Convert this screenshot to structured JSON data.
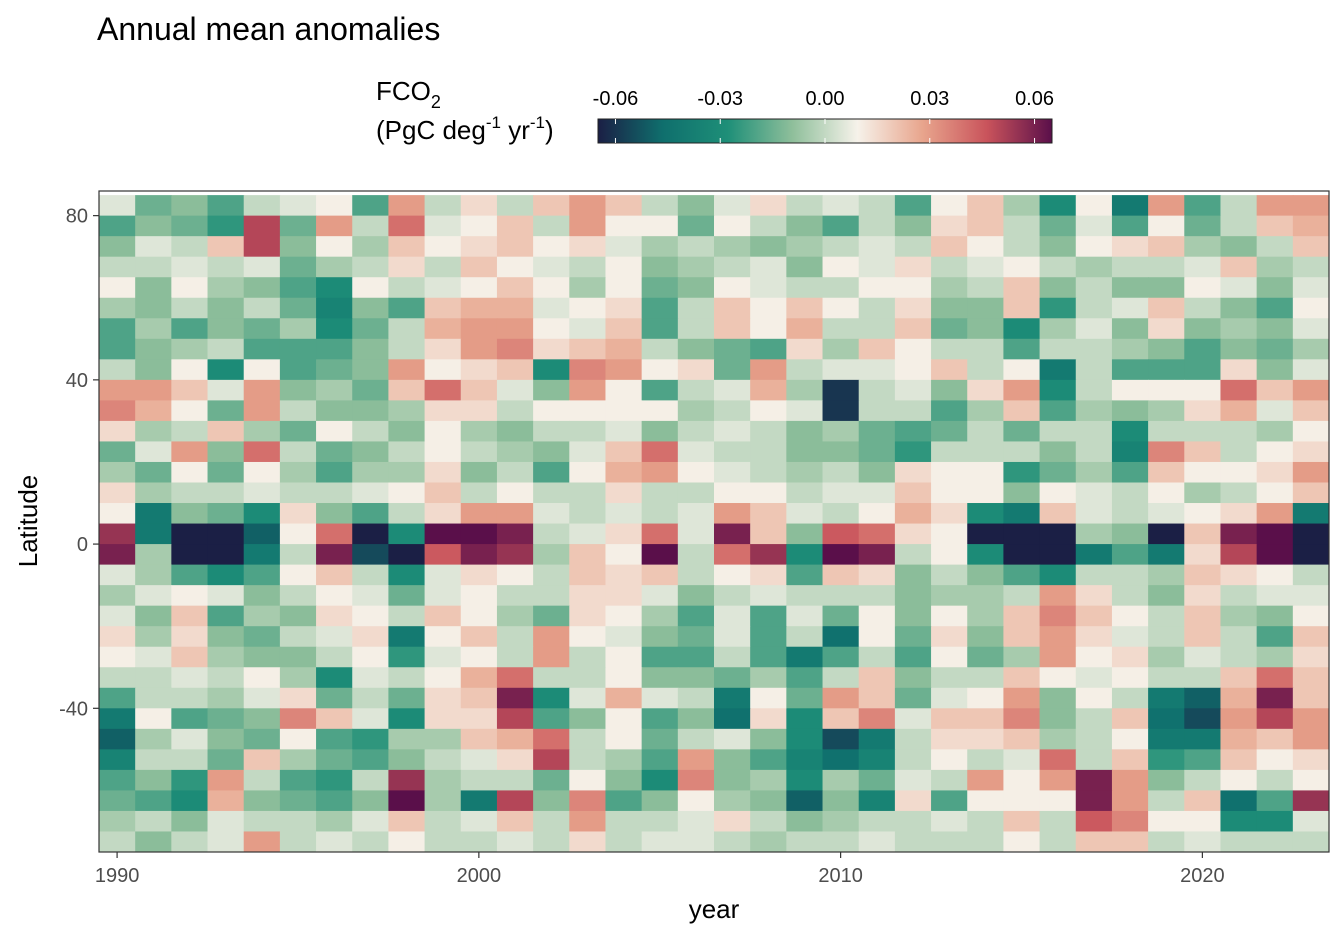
{
  "chart_data": {
    "type": "heatmap",
    "title": "Annual mean anomalies",
    "xlabel": "year",
    "ylabel": "Latitude",
    "x_tick_labels": [
      "1990",
      "2000",
      "2010",
      "2020"
    ],
    "x_ticks": [
      1990,
      2000,
      2010,
      2020
    ],
    "y_tick_labels": [
      "80",
      "40",
      "0",
      "-40"
    ],
    "y_ticks": [
      80,
      40,
      0,
      -40
    ],
    "xlim": [
      1989.5,
      2023.5
    ],
    "ylim": [
      -75,
      86
    ],
    "legend": {
      "title_main": "FCO",
      "title_sub": "2",
      "unit_open": "(PgC deg",
      "unit_exp1": "-1",
      "unit_mid": " yr",
      "unit_exp2": "-1",
      "unit_close": ")",
      "tick_labels": [
        "-0.06",
        "-0.03",
        "0.00",
        "0.03",
        "0.06"
      ],
      "ticks": [
        -0.06,
        -0.03,
        0.0,
        0.03,
        0.06
      ],
      "range": [
        -0.065,
        0.065
      ],
      "position": "top"
    },
    "color_stops": [
      "#1b1f45",
      "#0f6f6d",
      "#1e8f78",
      "#8fbf9b",
      "#f6f2ea",
      "#e8a58d",
      "#c9535b",
      "#5a0f4a"
    ],
    "years": [
      1990,
      1991,
      1992,
      1993,
      1994,
      1995,
      1996,
      1997,
      1998,
      1999,
      2000,
      2001,
      2002,
      2003,
      2004,
      2005,
      2006,
      2007,
      2008,
      2009,
      2010,
      2011,
      2012,
      2013,
      2014,
      2015,
      2016,
      2017,
      2018,
      2019,
      2020,
      2021,
      2022,
      2023
    ],
    "latitudes": [
      82.5,
      77.5,
      72.5,
      67.5,
      62.5,
      57.5,
      52.5,
      47.5,
      42.5,
      37.5,
      32.5,
      27.5,
      22.5,
      17.5,
      12.5,
      7.5,
      2.5,
      -2.5,
      -7.5,
      -12.5,
      -17.5,
      -22.5,
      -27.5,
      -32.5,
      -37.5,
      -42.5,
      -47.5,
      -52.5,
      -57.5,
      -62.5,
      -67.5,
      -72.5
    ],
    "values": [
      [
        0.005,
        -0.015,
        -0.01,
        -0.02,
        0.0,
        0.005,
        0.01,
        -0.02,
        0.03,
        0.0,
        0.015,
        0.0,
        0.02,
        0.03,
        0.02,
        0.0,
        -0.01,
        0.005,
        0.015,
        0.0,
        0.005,
        0.0,
        -0.02,
        0.01,
        0.02,
        -0.005,
        -0.03,
        0.01,
        -0.04,
        0.03,
        -0.02,
        0.0,
        0.03,
        0.03
      ],
      [
        -0.02,
        -0.01,
        -0.015,
        -0.025,
        0.05,
        -0.015,
        0.03,
        0.0,
        0.04,
        0.005,
        0.01,
        0.02,
        0.0,
        0.03,
        0.01,
        0.01,
        -0.015,
        0.01,
        0.0,
        -0.01,
        -0.02,
        0.0,
        -0.01,
        0.015,
        0.02,
        0.0,
        -0.015,
        0.005,
        -0.02,
        0.01,
        -0.015,
        0.0,
        0.02,
        0.025
      ],
      [
        -0.01,
        0.005,
        0.0,
        0.02,
        0.05,
        -0.01,
        0.01,
        -0.005,
        0.02,
        0.01,
        0.015,
        0.02,
        0.01,
        0.015,
        0.005,
        -0.005,
        0.0,
        -0.005,
        -0.01,
        -0.005,
        0.0,
        0.005,
        0.0,
        0.02,
        0.01,
        0.0,
        -0.01,
        0.01,
        0.015,
        0.02,
        -0.005,
        -0.01,
        0.0,
        0.02
      ],
      [
        0.0,
        0.0,
        0.005,
        0.0,
        0.005,
        -0.015,
        -0.005,
        0.0,
        0.015,
        0.0,
        0.02,
        0.01,
        0.005,
        0.0,
        0.01,
        -0.01,
        -0.005,
        0.0,
        0.005,
        -0.01,
        0.01,
        0.005,
        0.015,
        0.0,
        0.005,
        0.01,
        0.0,
        -0.005,
        0.0,
        0.0,
        0.005,
        0.02,
        -0.005,
        0.0
      ],
      [
        0.01,
        -0.01,
        0.01,
        -0.005,
        -0.01,
        -0.02,
        -0.03,
        0.01,
        0.0,
        0.005,
        0.01,
        0.02,
        0.01,
        -0.005,
        0.01,
        -0.015,
        -0.01,
        0.01,
        0.005,
        0.0,
        0.0,
        0.01,
        0.01,
        -0.005,
        0.0,
        0.02,
        -0.01,
        0.0,
        -0.01,
        -0.01,
        0.01,
        0.005,
        -0.01,
        0.005
      ],
      [
        -0.005,
        -0.01,
        0.0,
        -0.01,
        0.0,
        -0.015,
        -0.035,
        -0.01,
        -0.02,
        0.02,
        0.025,
        0.025,
        0.005,
        0.01,
        0.015,
        -0.02,
        0.0,
        0.02,
        0.01,
        0.02,
        0.01,
        0.0,
        0.015,
        -0.01,
        -0.01,
        0.02,
        -0.025,
        0.0,
        0.005,
        0.02,
        0.0,
        -0.01,
        -0.02,
        0.01
      ],
      [
        -0.02,
        -0.005,
        -0.02,
        -0.01,
        -0.015,
        -0.005,
        -0.03,
        -0.015,
        0.0,
        0.025,
        0.03,
        0.03,
        0.01,
        0.005,
        0.02,
        -0.02,
        0.0,
        0.02,
        0.01,
        0.025,
        0.0,
        0.0,
        0.02,
        -0.015,
        -0.01,
        -0.03,
        -0.005,
        0.005,
        -0.01,
        0.015,
        -0.01,
        -0.005,
        -0.01,
        0.005
      ],
      [
        -0.02,
        -0.01,
        -0.005,
        0.0,
        -0.02,
        -0.02,
        -0.02,
        -0.01,
        0.0,
        0.015,
        0.03,
        0.035,
        0.015,
        0.02,
        0.025,
        0.0,
        -0.01,
        -0.015,
        -0.02,
        0.015,
        -0.005,
        0.02,
        0.01,
        0.0,
        0.0,
        -0.02,
        0.0,
        0.0,
        -0.005,
        -0.01,
        -0.02,
        -0.01,
        -0.015,
        -0.005
      ],
      [
        0.0,
        -0.01,
        0.01,
        -0.03,
        0.01,
        -0.02,
        -0.015,
        -0.01,
        0.03,
        0.01,
        0.015,
        0.02,
        -0.03,
        0.035,
        0.03,
        0.01,
        0.015,
        -0.015,
        0.03,
        0.0,
        0.005,
        0.005,
        0.01,
        0.02,
        0.0,
        0.01,
        -0.04,
        0.0,
        -0.02,
        -0.02,
        -0.02,
        0.015,
        -0.01,
        0.005
      ],
      [
        0.03,
        0.03,
        0.02,
        0.005,
        0.03,
        -0.01,
        -0.005,
        -0.015,
        0.02,
        0.04,
        0.02,
        0.005,
        -0.01,
        0.03,
        0.01,
        -0.02,
        0.0,
        0.005,
        0.025,
        -0.005,
        -0.06,
        0.0,
        0.005,
        -0.01,
        0.015,
        0.03,
        -0.03,
        0.0,
        0.01,
        0.01,
        0.01,
        0.04,
        0.02,
        0.03
      ],
      [
        0.035,
        0.025,
        0.01,
        -0.015,
        0.03,
        0.0,
        -0.01,
        -0.01,
        -0.005,
        0.015,
        0.015,
        0.0,
        0.01,
        0.01,
        0.01,
        0.01,
        -0.005,
        0.0,
        0.01,
        0.005,
        -0.06,
        0.0,
        0.0,
        -0.02,
        -0.005,
        0.02,
        -0.02,
        -0.005,
        -0.01,
        -0.005,
        0.015,
        0.025,
        0.005,
        0.02
      ],
      [
        0.015,
        -0.005,
        0.0,
        0.02,
        -0.005,
        -0.015,
        0.01,
        0.0,
        -0.01,
        0.01,
        -0.005,
        -0.01,
        0.0,
        0.0,
        0.005,
        -0.01,
        0.0,
        0.005,
        0.0,
        -0.01,
        -0.005,
        -0.015,
        -0.02,
        -0.015,
        0.0,
        -0.015,
        0.0,
        0.0,
        -0.03,
        0.0,
        0.0,
        0.0,
        -0.005,
        0.01
      ],
      [
        -0.015,
        0.005,
        0.03,
        -0.01,
        0.04,
        0.0,
        -0.015,
        -0.01,
        0.0,
        0.01,
        0.0,
        -0.005,
        -0.01,
        0.005,
        0.02,
        0.04,
        0.005,
        0.0,
        0.0,
        -0.01,
        -0.01,
        -0.015,
        -0.025,
        0.0,
        0.0,
        0.0,
        -0.01,
        0.0,
        -0.035,
        0.035,
        0.02,
        0.0,
        0.01,
        0.015
      ],
      [
        -0.005,
        -0.015,
        0.01,
        -0.015,
        0.01,
        -0.005,
        -0.02,
        -0.005,
        -0.005,
        0.015,
        -0.01,
        0.0,
        -0.02,
        0.01,
        0.025,
        0.03,
        0.01,
        0.005,
        0.0,
        -0.005,
        0.0,
        -0.01,
        0.015,
        0.01,
        0.01,
        -0.025,
        -0.015,
        -0.005,
        -0.02,
        0.02,
        0.01,
        0.01,
        0.015,
        0.03
      ],
      [
        0.015,
        -0.005,
        0.0,
        0.0,
        0.005,
        0.0,
        0.0,
        0.005,
        0.01,
        0.02,
        0.0,
        0.01,
        0.0,
        0.0,
        0.015,
        0.0,
        0.0,
        0.01,
        0.01,
        0.0,
        0.005,
        0.005,
        0.02,
        0.01,
        0.01,
        -0.01,
        0.01,
        0.005,
        0.0,
        0.01,
        -0.005,
        0.0,
        0.01,
        0.02
      ],
      [
        0.01,
        -0.04,
        -0.01,
        -0.015,
        -0.03,
        0.015,
        -0.01,
        -0.02,
        0.0,
        0.015,
        0.03,
        0.03,
        0.005,
        0.0,
        0.005,
        0.0,
        0.005,
        0.03,
        0.02,
        0.005,
        0.0,
        0.01,
        0.025,
        0.015,
        -0.03,
        -0.04,
        0.02,
        0.005,
        0.0,
        0.005,
        0.01,
        0.015,
        0.03,
        -0.04
      ],
      [
        0.055,
        -0.04,
        -0.065,
        -0.065,
        -0.05,
        0.01,
        0.04,
        -0.065,
        -0.03,
        0.065,
        0.065,
        0.06,
        0.0,
        0.005,
        0.015,
        0.04,
        0.005,
        0.06,
        0.02,
        -0.01,
        0.045,
        0.04,
        0.015,
        0.01,
        -0.065,
        -0.065,
        -0.065,
        -0.005,
        -0.01,
        -0.065,
        0.02,
        0.06,
        0.065,
        -0.065
      ],
      [
        0.06,
        -0.005,
        -0.065,
        -0.065,
        -0.04,
        0.0,
        0.06,
        -0.055,
        -0.065,
        0.045,
        0.06,
        0.055,
        -0.005,
        0.02,
        0.01,
        0.065,
        0.0,
        0.04,
        0.055,
        -0.03,
        0.065,
        0.06,
        0.0,
        0.01,
        -0.03,
        -0.065,
        -0.065,
        -0.04,
        -0.02,
        -0.04,
        0.015,
        0.05,
        0.065,
        -0.065
      ],
      [
        0.005,
        -0.005,
        -0.02,
        -0.03,
        -0.02,
        0.01,
        0.02,
        0.0,
        -0.03,
        0.005,
        0.015,
        0.01,
        0.0,
        0.02,
        0.015,
        0.02,
        0.0,
        0.01,
        0.015,
        -0.02,
        0.02,
        0.015,
        -0.01,
        0.0,
        -0.01,
        -0.02,
        -0.03,
        0.0,
        0.0,
        -0.005,
        0.02,
        0.015,
        0.01,
        0.0
      ],
      [
        -0.005,
        0.005,
        0.01,
        0.005,
        -0.01,
        0.0,
        0.01,
        0.005,
        -0.015,
        0.005,
        0.01,
        0.0,
        0.0,
        0.015,
        0.015,
        0.005,
        -0.01,
        0.0,
        0.005,
        0.0,
        0.0,
        0.0,
        -0.01,
        -0.005,
        -0.005,
        0.0,
        0.03,
        0.015,
        0.0,
        -0.01,
        0.015,
        0.0,
        0.005,
        0.005
      ],
      [
        0.005,
        -0.01,
        0.02,
        -0.02,
        -0.005,
        -0.01,
        0.015,
        0.01,
        0.0,
        0.02,
        0.01,
        -0.005,
        -0.015,
        0.015,
        0.01,
        -0.005,
        -0.02,
        0.005,
        -0.02,
        0.005,
        -0.015,
        0.01,
        -0.01,
        0.01,
        -0.005,
        0.02,
        0.035,
        0.02,
        0.01,
        0.0,
        0.02,
        -0.005,
        -0.01,
        0.01
      ],
      [
        0.015,
        -0.005,
        0.015,
        -0.01,
        -0.015,
        0.0,
        0.005,
        0.015,
        -0.04,
        0.01,
        0.02,
        0.0,
        0.03,
        0.01,
        0.005,
        -0.01,
        -0.015,
        0.005,
        -0.02,
        0.0,
        -0.045,
        0.01,
        -0.015,
        0.015,
        -0.01,
        0.02,
        0.03,
        0.015,
        0.005,
        0.0,
        0.02,
        0.0,
        -0.02,
        0.02
      ],
      [
        0.01,
        0.005,
        0.02,
        -0.005,
        -0.01,
        -0.01,
        0.0,
        0.01,
        -0.025,
        0.005,
        0.01,
        0.0,
        0.03,
        0.0,
        0.01,
        -0.02,
        -0.02,
        0.0,
        -0.02,
        -0.04,
        -0.02,
        0.0,
        -0.02,
        0.01,
        -0.015,
        -0.005,
        0.03,
        0.01,
        0.015,
        -0.005,
        0.005,
        0.0,
        -0.005,
        0.015
      ],
      [
        0.0,
        0.0,
        0.005,
        0.0,
        0.01,
        -0.005,
        -0.03,
        0.005,
        0.0,
        0.01,
        0.025,
        0.04,
        0.0,
        0.0,
        0.01,
        -0.01,
        -0.01,
        -0.015,
        -0.005,
        -0.02,
        0.0,
        0.02,
        -0.01,
        0.0,
        0.0,
        0.02,
        0.01,
        0.005,
        0.01,
        0.0,
        0.0,
        0.02,
        0.04,
        0.02
      ],
      [
        -0.02,
        0.0,
        0.0,
        -0.005,
        0.005,
        0.015,
        -0.015,
        0.0,
        -0.015,
        0.015,
        0.02,
        0.06,
        -0.03,
        0.005,
        0.025,
        0.005,
        0.0,
        -0.04,
        0.01,
        -0.015,
        0.03,
        0.02,
        -0.015,
        0.005,
        0.01,
        0.03,
        -0.01,
        0.01,
        0.0,
        -0.04,
        -0.05,
        0.025,
        0.06,
        0.02
      ],
      [
        -0.04,
        0.01,
        -0.02,
        -0.015,
        -0.01,
        0.035,
        0.02,
        0.005,
        -0.03,
        0.015,
        0.015,
        0.05,
        -0.02,
        -0.01,
        0.01,
        -0.02,
        -0.01,
        -0.045,
        0.015,
        -0.03,
        0.02,
        0.035,
        0.005,
        0.02,
        0.02,
        0.035,
        -0.01,
        0.0,
        0.02,
        -0.045,
        -0.055,
        0.03,
        0.05,
        0.03
      ],
      [
        -0.05,
        -0.005,
        0.005,
        -0.01,
        -0.015,
        0.01,
        -0.02,
        -0.025,
        -0.005,
        -0.005,
        0.02,
        0.025,
        0.04,
        0.0,
        0.01,
        -0.015,
        0.0,
        0.005,
        -0.01,
        -0.03,
        -0.055,
        -0.04,
        0.0,
        0.015,
        0.015,
        0.02,
        -0.005,
        0.0,
        0.01,
        -0.04,
        -0.04,
        0.025,
        0.02,
        0.03
      ],
      [
        -0.035,
        0.0,
        0.0,
        -0.015,
        0.02,
        -0.005,
        -0.015,
        -0.02,
        -0.01,
        0.0,
        0.005,
        0.015,
        0.05,
        0.0,
        -0.005,
        -0.02,
        0.03,
        -0.01,
        -0.02,
        -0.035,
        -0.045,
        -0.035,
        0.0,
        0.01,
        0.0,
        0.005,
        0.04,
        0.0,
        0.02,
        -0.025,
        -0.02,
        0.02,
        0.01,
        0.015
      ],
      [
        -0.02,
        -0.01,
        -0.025,
        0.03,
        0.0,
        -0.02,
        -0.025,
        0.0,
        0.055,
        -0.005,
        0.0,
        0.0,
        -0.015,
        0.01,
        -0.01,
        -0.03,
        0.035,
        -0.01,
        -0.005,
        -0.03,
        -0.005,
        -0.015,
        0.005,
        0.0,
        0.03,
        0.01,
        0.03,
        0.06,
        0.03,
        -0.01,
        0.0,
        0.01,
        0.0,
        0.01
      ],
      [
        -0.015,
        -0.02,
        -0.03,
        0.025,
        -0.01,
        -0.015,
        -0.02,
        -0.01,
        0.065,
        -0.005,
        -0.04,
        0.05,
        -0.01,
        0.035,
        -0.02,
        -0.01,
        0.01,
        -0.005,
        -0.01,
        -0.05,
        -0.01,
        -0.035,
        0.015,
        -0.02,
        0.01,
        0.01,
        0.01,
        0.06,
        0.03,
        0.0,
        0.02,
        -0.045,
        -0.02,
        0.055
      ],
      [
        -0.005,
        0.0,
        -0.01,
        0.005,
        0.0,
        0.0,
        -0.005,
        0.005,
        0.02,
        0.0,
        0.005,
        0.02,
        0.0,
        0.03,
        0.0,
        0.0,
        0.005,
        0.015,
        0.0,
        -0.01,
        -0.005,
        0.0,
        0.0,
        0.005,
        0.0,
        0.02,
        0.0,
        0.045,
        0.035,
        0.01,
        0.01,
        -0.03,
        -0.03,
        0.005
      ],
      [
        0.0,
        -0.01,
        0.0,
        0.005,
        0.03,
        0.0,
        0.005,
        0.0,
        0.01,
        0.0,
        0.0,
        0.005,
        0.0,
        0.015,
        0.0,
        0.005,
        0.005,
        0.0,
        -0.005,
        0.0,
        0.0,
        0.005,
        0.0,
        0.0,
        0.0,
        0.01,
        0.0,
        0.02,
        0.02,
        0.0,
        0.005,
        0.0,
        0.0,
        0.0
      ]
    ]
  }
}
